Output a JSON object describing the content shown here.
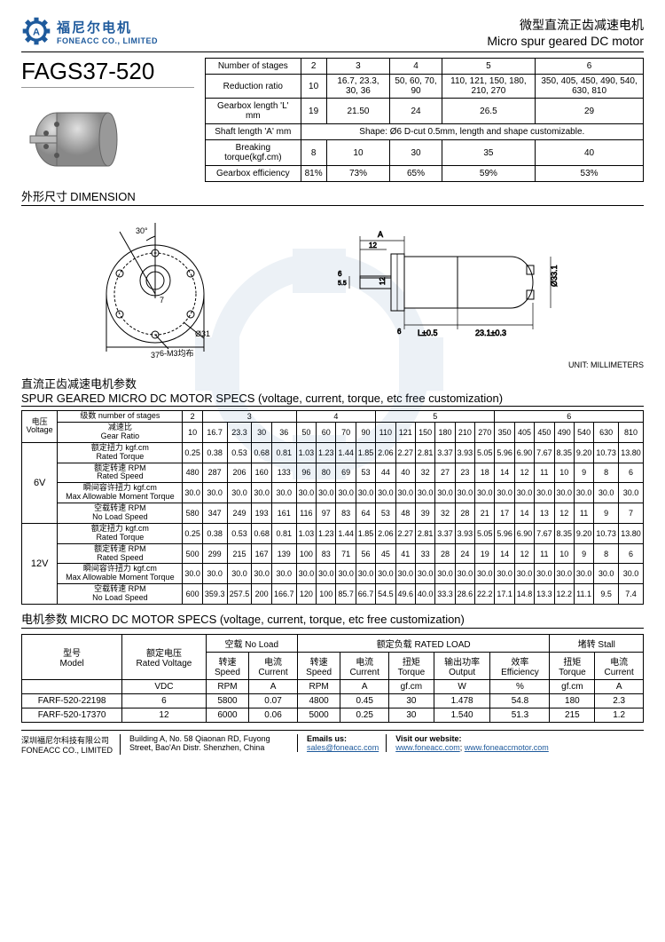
{
  "company": {
    "name_cn": "福尼尔电机",
    "name_en": "FONEACC CO., LIMITED",
    "logo_color": "#1e5a9c"
  },
  "title": {
    "cn": "微型直流正齿减速电机",
    "en": "Micro spur geared DC motor"
  },
  "model": "FAGS37-520",
  "gearbox": {
    "headers": [
      "Number of stages",
      "2",
      "3",
      "4",
      "5",
      "6"
    ],
    "rows": [
      {
        "label": "Reduction ratio",
        "cells": [
          "10",
          "16.7, 23.3, 30, 36",
          "50, 60, 70, 90",
          "110, 121, 150, 180, 210, 270",
          "350, 405, 450, 490, 540, 630, 810"
        ]
      },
      {
        "label": "Gearbox length 'L' mm",
        "cells": [
          "19",
          "21.50",
          "24",
          "26.5",
          "29"
        ]
      },
      {
        "label": "Shaft length 'A' mm",
        "span_text": "Shape: Ø6 D-cut 0.5mm, length and shape customizable."
      },
      {
        "label": "Breaking torque(kgf.cm)",
        "cells": [
          "8",
          "10",
          "30",
          "35",
          "40"
        ]
      },
      {
        "label": "Gearbox efficiency",
        "cells": [
          "81%",
          "73%",
          "65%",
          "59%",
          "53%"
        ]
      }
    ]
  },
  "dimension": {
    "header_cn": "外形尺寸",
    "header_en": "DIMENSION",
    "unit": "UNIT: MILLIMETERS",
    "values": {
      "d_outer": "37",
      "d_bolt": "Ø31",
      "bolts": "6-M3均布",
      "angle": "30°",
      "offset": "7",
      "shaft_d": "6",
      "shaft_flat": "5.5",
      "A": "A",
      "a_tip": "12",
      "body_d": "12",
      "L": "L±0.5",
      "motor_l": "23.1±0.3",
      "motor_d": "Ø33.1"
    }
  },
  "specs_header": {
    "cn": "直流正齿减速电机参数",
    "en": "SPUR GEARED MICRO DC MOTOR SPECS (voltage, current, torque, etc free customization)"
  },
  "specs": {
    "stage_groups": [
      {
        "label": "2",
        "span": 1
      },
      {
        "label": "3",
        "span": 4
      },
      {
        "label": "4",
        "span": 4
      },
      {
        "label": "5",
        "span": 6
      },
      {
        "label": "6",
        "span": 7
      }
    ],
    "ratios": [
      "10",
      "16.7",
      "23.3",
      "30",
      "36",
      "50",
      "60",
      "70",
      "90",
      "110",
      "121",
      "150",
      "180",
      "210",
      "270",
      "350",
      "405",
      "450",
      "490",
      "540",
      "630",
      "810"
    ],
    "voltages": [
      {
        "v": "6V",
        "rows": [
          {
            "cn": "额定扭力 kgf.cm",
            "en": "Rated Torque",
            "vals": [
              "0.25",
              "0.38",
              "0.53",
              "0.68",
              "0.81",
              "1.03",
              "1.23",
              "1.44",
              "1.85",
              "2.06",
              "2.27",
              "2.81",
              "3.37",
              "3.93",
              "5.05",
              "5.96",
              "6.90",
              "7.67",
              "8.35",
              "9.20",
              "10.73",
              "13.80"
            ]
          },
          {
            "cn": "额定转速 RPM",
            "en": "Rated Speed",
            "vals": [
              "480",
              "287",
              "206",
              "160",
              "133",
              "96",
              "80",
              "69",
              "53",
              "44",
              "40",
              "32",
              "27",
              "23",
              "18",
              "14",
              "12",
              "11",
              "10",
              "9",
              "8",
              "6"
            ]
          },
          {
            "cn": "瞬间容许扭力 kgf.cm",
            "en": "Max Allowable Moment Torque",
            "vals": [
              "30.0",
              "30.0",
              "30.0",
              "30.0",
              "30.0",
              "30.0",
              "30.0",
              "30.0",
              "30.0",
              "30.0",
              "30.0",
              "30.0",
              "30.0",
              "30.0",
              "30.0",
              "30.0",
              "30.0",
              "30.0",
              "30.0",
              "30.0",
              "30.0",
              "30.0"
            ]
          },
          {
            "cn": "空载转速 RPM",
            "en": "No Load Speed",
            "vals": [
              "580",
              "347",
              "249",
              "193",
              "161",
              "116",
              "97",
              "83",
              "64",
              "53",
              "48",
              "39",
              "32",
              "28",
              "21",
              "17",
              "14",
              "13",
              "12",
              "11",
              "9",
              "7"
            ]
          }
        ]
      },
      {
        "v": "12V",
        "rows": [
          {
            "cn": "额定扭力 kgf.cm",
            "en": "Rated Torque",
            "vals": [
              "0.25",
              "0.38",
              "0.53",
              "0.68",
              "0.81",
              "1.03",
              "1.23",
              "1.44",
              "1.85",
              "2.06",
              "2.27",
              "2.81",
              "3.37",
              "3.93",
              "5.05",
              "5.96",
              "6.90",
              "7.67",
              "8.35",
              "9.20",
              "10.73",
              "13.80"
            ]
          },
          {
            "cn": "额定转速 RPM",
            "en": "Rated Speed",
            "vals": [
              "500",
              "299",
              "215",
              "167",
              "139",
              "100",
              "83",
              "71",
              "56",
              "45",
              "41",
              "33",
              "28",
              "24",
              "19",
              "14",
              "12",
              "11",
              "10",
              "9",
              "8",
              "6"
            ]
          },
          {
            "cn": "瞬间容许扭力 kgf.cm",
            "en": "Max Allowable Moment Torque",
            "vals": [
              "30.0",
              "30.0",
              "30.0",
              "30.0",
              "30.0",
              "30.0",
              "30.0",
              "30.0",
              "30.0",
              "30.0",
              "30.0",
              "30.0",
              "30.0",
              "30.0",
              "30.0",
              "30.0",
              "30.0",
              "30.0",
              "30.0",
              "30.0",
              "30.0",
              "30.0"
            ]
          },
          {
            "cn": "空载转速 RPM",
            "en": "No Load Speed",
            "vals": [
              "600",
              "359.3",
              "257.5",
              "200",
              "166.7",
              "120",
              "100",
              "85.7",
              "66.7",
              "54.5",
              "49.6",
              "40.0",
              "33.3",
              "28.6",
              "22.2",
              "17.1",
              "14.8",
              "13.3",
              "12.2",
              "11.1",
              "9.5",
              "7.4"
            ]
          }
        ]
      }
    ],
    "col_labels": {
      "voltage_cn": "电压",
      "voltage_en": "Voltage",
      "stages_cn": "级数 number of stages",
      "ratio_cn": "减速比",
      "ratio_en": "Gear Ratio"
    }
  },
  "dc_header": {
    "cn": "电机参数",
    "en": "MICRO DC MOTOR SPECS (voltage, current, torque, etc free customization)"
  },
  "dc": {
    "groups": [
      {
        "cn": "型号",
        "en": "Model",
        "unit": ""
      },
      {
        "cn": "额定电压",
        "en": "Rated Voltage",
        "unit": "VDC"
      },
      {
        "cn": "空载 No Load",
        "sub": [
          {
            "cn": "转速",
            "en": "Speed",
            "unit": "RPM"
          },
          {
            "cn": "电流",
            "en": "Current",
            "unit": "A"
          }
        ]
      },
      {
        "cn": "额定负载 RATED LOAD",
        "sub": [
          {
            "cn": "转速",
            "en": "Speed",
            "unit": "RPM"
          },
          {
            "cn": "电流",
            "en": "Current",
            "unit": "A"
          },
          {
            "cn": "扭矩",
            "en": "Torque",
            "unit": "gf.cm"
          },
          {
            "cn": "输出功率",
            "en": "Output",
            "unit": "W"
          },
          {
            "cn": "效率",
            "en": "Efficiency",
            "unit": "%"
          }
        ]
      },
      {
        "cn": "堵转 Stall",
        "sub": [
          {
            "cn": "扭矩",
            "en": "Torque",
            "unit": "gf.cm"
          },
          {
            "cn": "电流",
            "en": "Current",
            "unit": "A"
          }
        ]
      }
    ],
    "rows": [
      {
        "model": "FARF-520-22198",
        "v": "6",
        "vals": [
          "5800",
          "0.07",
          "4800",
          "0.45",
          "30",
          "1.478",
          "54.8",
          "180",
          "2.3"
        ]
      },
      {
        "model": "FARF-520-17370",
        "v": "12",
        "vals": [
          "6000",
          "0.06",
          "5000",
          "0.25",
          "30",
          "1.540",
          "51.3",
          "215",
          "1.2"
        ]
      }
    ]
  },
  "footer": {
    "company_cn": "深圳福尼尔科技有限公司",
    "company_en": "FONEACC CO., LIMITED",
    "address": "Building A, No. 58 Qiaonan RD, Fuyong Street, Bao'An Distr. Shenzhen, China",
    "email_label": "Emails us:",
    "email": "sales@foneacc.com",
    "web_label": "Visit our website:",
    "web1": "www.foneacc.com",
    "web2": "www.foneaccmotor.com"
  }
}
